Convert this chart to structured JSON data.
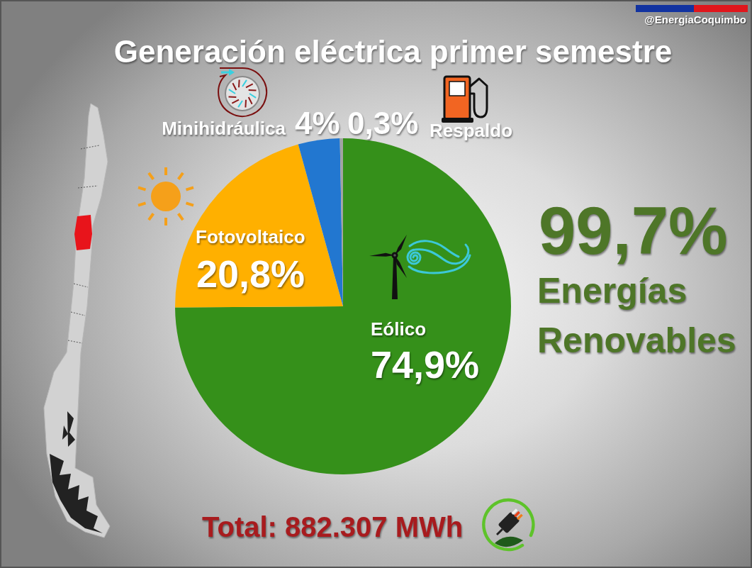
{
  "chart_data": {
    "type": "pie",
    "title": "Generación eléctrica primer semestre",
    "categories": [
      "Eólico",
      "Fotovoltaico",
      "Minihidráulica",
      "Respaldo"
    ],
    "values": [
      74.9,
      20.8,
      4,
      0.3
    ],
    "colors": [
      "#35901a",
      "#ffb000",
      "#2277d0",
      "#a3a3a3"
    ],
    "value_labels": [
      "74,9%",
      "20,8%",
      "4%",
      "0,3%"
    ],
    "annotations": [
      "99,7%",
      "Energías Renovables",
      "Total: 882.307 MWh",
      "@EnergiaCoquimbo"
    ]
  }
}
